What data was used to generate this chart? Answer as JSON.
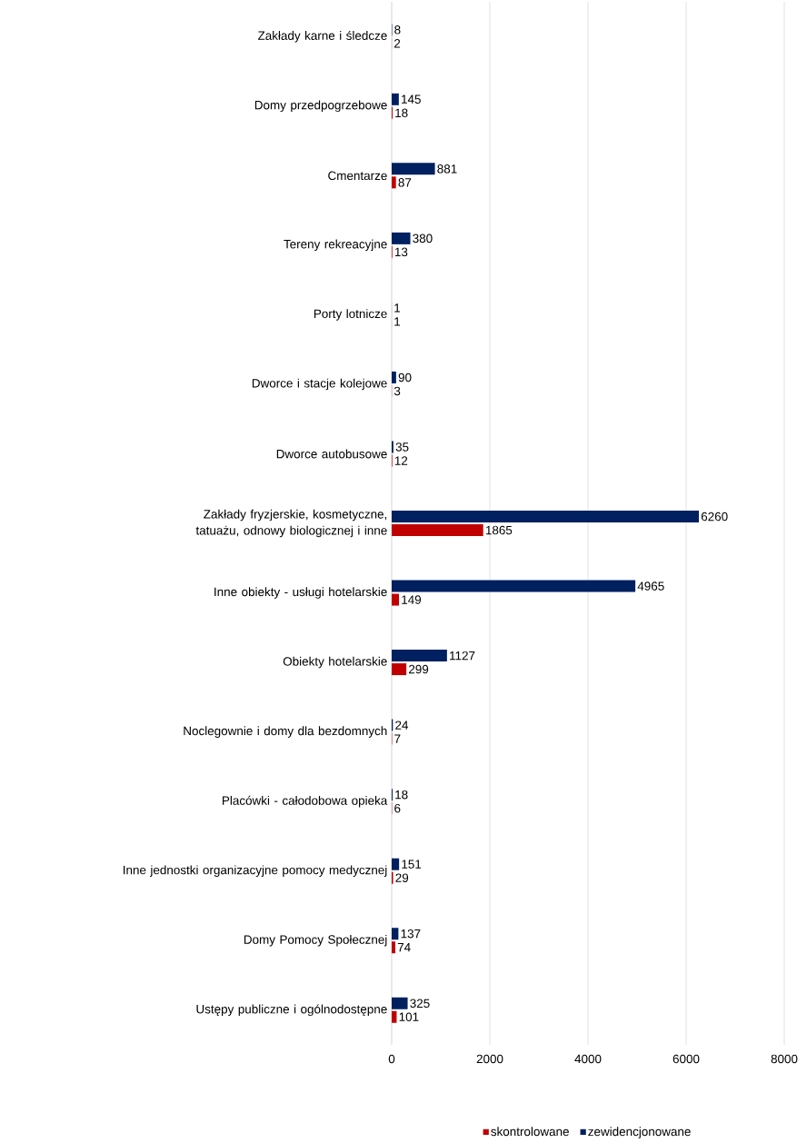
{
  "chart_data": {
    "type": "bar",
    "orientation": "horizontal",
    "categories": [
      "Zakłady karne i śledcze",
      "Domy przedpogrzebowe",
      "Cmentarze",
      "Tereny rekreacyjne",
      "Porty lotnicze",
      "Dworce i stacje kolejowe",
      "Dworce autobusowe",
      "Zakłady fryzjerskie, kosmetyczne, tatuażu, odnowy biologicznej i inne",
      "Inne obiekty - usługi hotelarskie",
      "Obiekty hotelarskie",
      "Noclegownie i domy dla bezdomnych",
      "Placówki - całodobowa opieka",
      "Inne jednostki organizacyjne pomocy medycznej",
      "Domy Pomocy Społecznej",
      "Ustępy publiczne i ogólnodostępne"
    ],
    "series": [
      {
        "name": "skontrolowane",
        "color": "#c00000",
        "values": [
          2,
          18,
          87,
          13,
          1,
          3,
          12,
          1865,
          149,
          299,
          7,
          6,
          29,
          74,
          101
        ]
      },
      {
        "name": "zewidencjonowane",
        "color": "#002060",
        "values": [
          8,
          145,
          881,
          380,
          1,
          90,
          35,
          6260,
          4965,
          1127,
          24,
          18,
          151,
          137,
          325
        ]
      }
    ],
    "xlim": [
      0,
      8000
    ],
    "xticks": [
      0,
      2000,
      4000,
      6000,
      8000
    ],
    "grid": "x",
    "legend": "bottom",
    "data_labels": true
  }
}
